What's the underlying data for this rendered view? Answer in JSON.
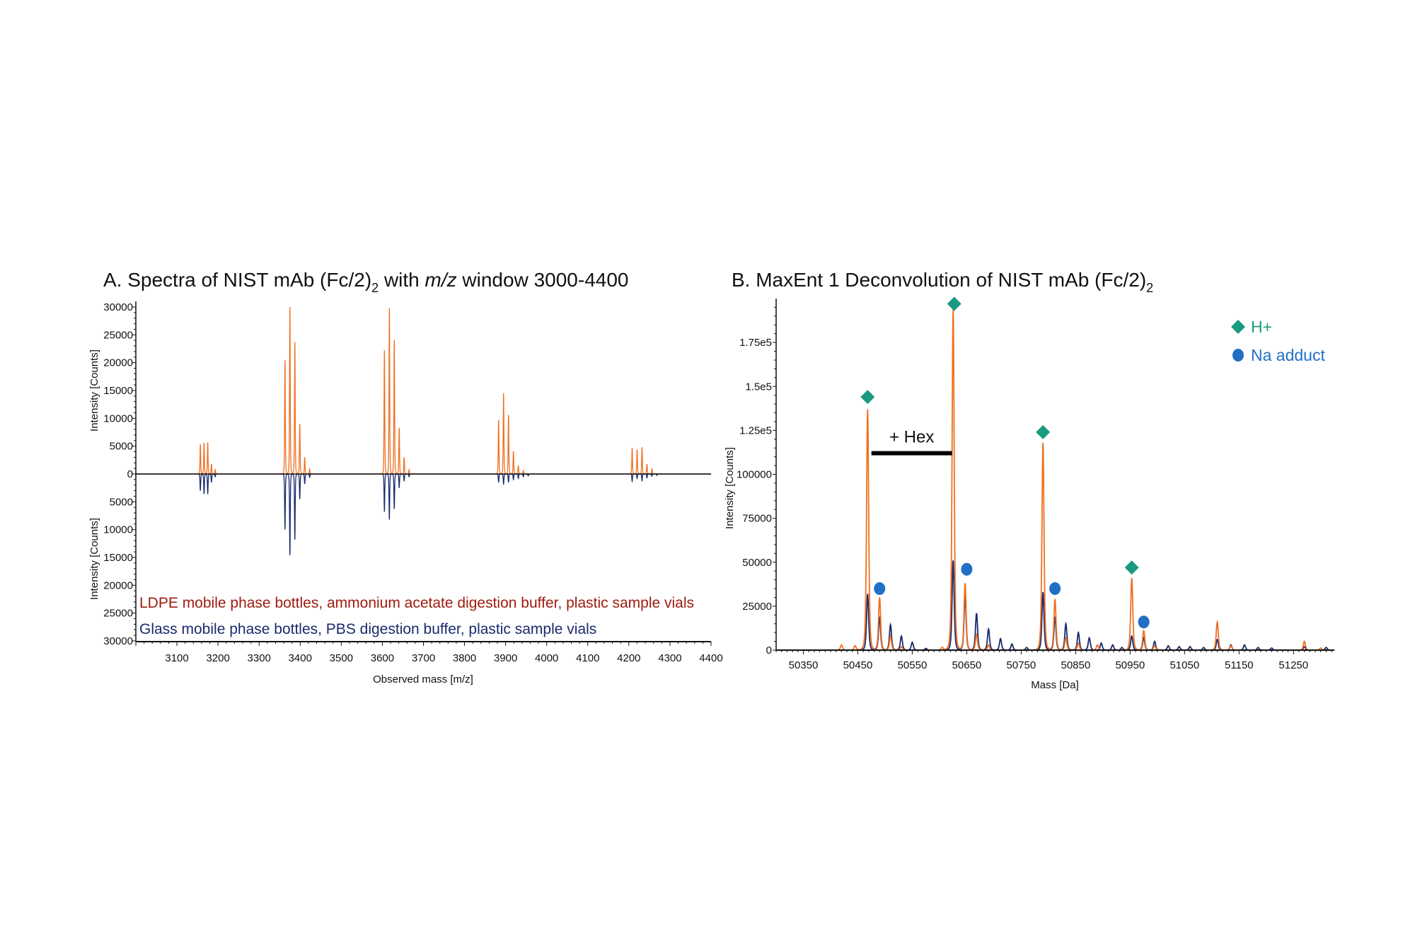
{
  "chart_data": [
    {
      "type": "line",
      "title": {
        "prefix": "A. Spectra of NIST mAb (Fc/2)",
        "sub": "2",
        "mid": " with ",
        "italic": "m/z",
        "suffix": " window 3000-4400"
      },
      "xlabel": "Observed mass [m/z]",
      "ylabel_top": "Intensity [Counts]",
      "ylabel_bottom": "Intensity [Counts]",
      "xlim": [
        3000,
        4400
      ],
      "ylim": [
        -30000,
        30000
      ],
      "x_ticks": [
        3100,
        3200,
        3300,
        3400,
        3500,
        3600,
        3700,
        3800,
        3900,
        4000,
        4100,
        4200,
        4300,
        4400
      ],
      "y_tick_labels": [
        "30000",
        "25000",
        "20000",
        "15000",
        "10000",
        "5000",
        "0",
        "5000",
        "10000",
        "15000",
        "20000",
        "25000",
        "30000"
      ],
      "y_tick_values": [
        30000,
        25000,
        20000,
        15000,
        10000,
        5000,
        0,
        -5000,
        -10000,
        -15000,
        -20000,
        -25000,
        -30000
      ],
      "mirror": true,
      "series": [
        {
          "name": "LDPE mobile phase bottles, ammonium acetate digestion buffer, plastic sample vials",
          "color": "#f07020",
          "label_color": "#9e1b0e",
          "direction": "up",
          "peaks": [
            [
              3157,
              5300
            ],
            [
              3166,
              5600
            ],
            [
              3175,
              5700
            ],
            [
              3184,
              1800
            ],
            [
              3193,
              800
            ],
            [
              3363,
              20500
            ],
            [
              3375,
              30000
            ],
            [
              3387,
              23700
            ],
            [
              3399,
              9000
            ],
            [
              3411,
              3000
            ],
            [
              3423,
              900
            ],
            [
              3605,
              22200
            ],
            [
              3617,
              29800
            ],
            [
              3629,
              24100
            ],
            [
              3641,
              8300
            ],
            [
              3653,
              3000
            ],
            [
              3665,
              800
            ],
            [
              3883,
              9700
            ],
            [
              3895,
              14500
            ],
            [
              3907,
              10600
            ],
            [
              3919,
              4100
            ],
            [
              3931,
              1500
            ],
            [
              3943,
              600
            ],
            [
              4208,
              4700
            ],
            [
              4220,
              4400
            ],
            [
              4232,
              4800
            ],
            [
              4244,
              1800
            ],
            [
              4256,
              900
            ]
          ]
        },
        {
          "name": "Glass mobile phase bottles, PBS digestion buffer, plastic sample vials",
          "color": "#1a2a6c",
          "label_color": "#1a2a6c",
          "direction": "down",
          "peaks": [
            [
              3157,
              3000
            ],
            [
              3166,
              3600
            ],
            [
              3175,
              3600
            ],
            [
              3184,
              1500
            ],
            [
              3193,
              500
            ],
            [
              3363,
              10000
            ],
            [
              3375,
              14600
            ],
            [
              3387,
              11800
            ],
            [
              3399,
              4500
            ],
            [
              3411,
              1800
            ],
            [
              3423,
              600
            ],
            [
              3605,
              6800
            ],
            [
              3617,
              8200
            ],
            [
              3629,
              6300
            ],
            [
              3641,
              2500
            ],
            [
              3653,
              1200
            ],
            [
              3665,
              500
            ],
            [
              3883,
              1500
            ],
            [
              3895,
              1900
            ],
            [
              3907,
              1500
            ],
            [
              3919,
              1000
            ],
            [
              3931,
              800
            ],
            [
              3943,
              500
            ],
            [
              3955,
              350
            ],
            [
              4208,
              1300
            ],
            [
              4220,
              800
            ],
            [
              4232,
              1200
            ],
            [
              4244,
              700
            ],
            [
              4256,
              400
            ],
            [
              4268,
              250
            ]
          ]
        }
      ]
    },
    {
      "type": "line",
      "title": {
        "prefix": "B. MaxEnt 1 Deconvolution of NIST mAb (Fc/2)",
        "sub": "2"
      },
      "xlabel": "Mass [Da]",
      "ylabel": "Intensity [Counts]",
      "xlim": [
        50300,
        51325
      ],
      "ylim": [
        0,
        200000
      ],
      "x_ticks": [
        50350,
        50450,
        50550,
        50650,
        50750,
        50850,
        50950,
        51050,
        51150,
        51250
      ],
      "y_tick_labels": [
        "0",
        "25000",
        "50000",
        "75000",
        "100000",
        "1.25e5",
        "1.5e5",
        "1.75e5"
      ],
      "y_tick_values": [
        0,
        25000,
        50000,
        75000,
        100000,
        125000,
        150000,
        175000
      ],
      "series": [
        {
          "color": "#1a2a6c",
          "peaks": [
            [
              50468,
              32000
            ],
            [
              50490,
              19000
            ],
            [
              50510,
              14500
            ],
            [
              50530,
              8000
            ],
            [
              50550,
              4500
            ],
            [
              50575,
              1000
            ],
            [
              50625,
              51000
            ],
            [
              50647,
              31000
            ],
            [
              50668,
              21000
            ],
            [
              50690,
              12000
            ],
            [
              50712,
              6500
            ],
            [
              50733,
              3500
            ],
            [
              50760,
              1500
            ],
            [
              50790,
              33000
            ],
            [
              50812,
              19000
            ],
            [
              50832,
              15000
            ],
            [
              50855,
              10000
            ],
            [
              50875,
              7000
            ],
            [
              50897,
              4000
            ],
            [
              50918,
              3000
            ],
            [
              50935,
              1500
            ],
            [
              50953,
              8000
            ],
            [
              50975,
              7000
            ],
            [
              50995,
              5000
            ],
            [
              51020,
              2500
            ],
            [
              51040,
              2000
            ],
            [
              51060,
              2000
            ],
            [
              51085,
              1500
            ],
            [
              51110,
              6000
            ],
            [
              51135,
              3000
            ],
            [
              51160,
              3000
            ],
            [
              51185,
              1500
            ],
            [
              51210,
              1200
            ],
            [
              51270,
              2000
            ],
            [
              51310,
              1500
            ]
          ]
        },
        {
          "color": "#f07020",
          "peaks": [
            [
              50420,
              3000
            ],
            [
              50445,
              2500
            ],
            [
              50468,
              137000
            ],
            [
              50490,
              30000
            ],
            [
              50510,
              8000
            ],
            [
              50530,
              2000
            ],
            [
              50605,
              1500
            ],
            [
              50625,
              194000
            ],
            [
              50647,
              38000
            ],
            [
              50668,
              9000
            ],
            [
              50690,
              3000
            ],
            [
              50790,
              118000
            ],
            [
              50812,
              29000
            ],
            [
              50832,
              7000
            ],
            [
              50855,
              4000
            ],
            [
              50890,
              3000
            ],
            [
              50953,
              41000
            ],
            [
              50975,
              11000
            ],
            [
              50995,
              2500
            ],
            [
              51110,
              16000
            ],
            [
              51135,
              2500
            ],
            [
              51270,
              5000
            ],
            [
              51300,
              1200
            ]
          ]
        }
      ],
      "markers": {
        "h_plus": {
          "label": "H+",
          "color": "#1a9a80",
          "shape": "diamond",
          "points": [
            [
              50468,
              144000
            ],
            [
              50627,
              197000
            ],
            [
              50790,
              124000
            ],
            [
              50953,
              47000
            ]
          ]
        },
        "na_adduct": {
          "label": "Na adduct",
          "color": "#1f6fc5",
          "shape": "circle",
          "points": [
            [
              50490,
              35000
            ],
            [
              50650,
              46000
            ],
            [
              50812,
              35000
            ],
            [
              50975,
              16000
            ]
          ]
        }
      },
      "annotation": {
        "text": "+ Hex",
        "from": 50475,
        "to": 50623,
        "y": 112000
      },
      "legend": "top-right"
    }
  ]
}
